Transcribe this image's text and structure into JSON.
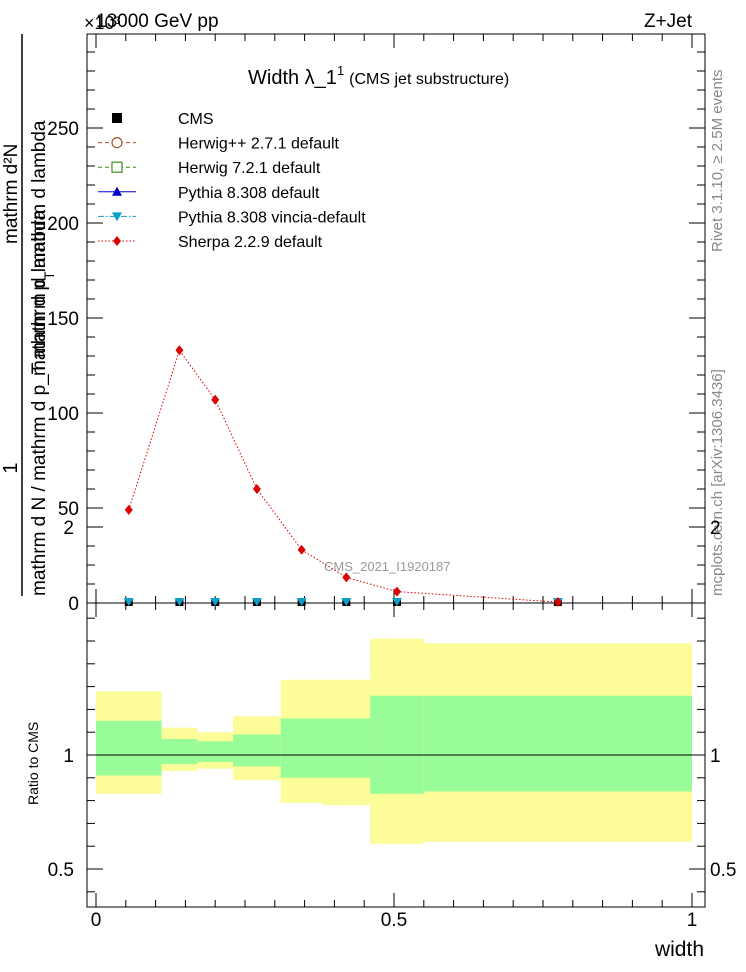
{
  "header": {
    "left": "13000 GeV pp",
    "right": "Z+Jet",
    "exponent_label": "×10³"
  },
  "side": {
    "rivet": "Rivet 3.1.10, ≥ 2.5M events",
    "mcplots": "mcplots.cern.ch [arXiv:1306.3436]"
  },
  "chart_data": [
    {
      "type": "line",
      "title": "Width λ_1",
      "title_superscript": "1",
      "subtitle": "(CMS jet substructure)",
      "analysis_label": "CMS_2021_I1920187",
      "ylabel": {
        "numerator": "1",
        "denominator": "mathrm d N / mathrm d p_T mathrm d lambda",
        "top": "mathrm d²N",
        "bottom_a": "mathrm d p",
        "bottom_sub": "T",
        "bottom_b": "mathrm d lambda"
      },
      "xlim": [
        0,
        1
      ],
      "ylim": [
        0,
        298
      ],
      "y_multiplier": 1000,
      "yticks": [
        0,
        50,
        100,
        150,
        200,
        250
      ],
      "legend_position": "top-left",
      "legend": [
        {
          "name": "CMS",
          "color": "#000000",
          "marker": "square",
          "line": "none"
        },
        {
          "name": "Herwig++ 2.7.1 default",
          "color": "#a0522d",
          "marker": "open-circle",
          "line": "dashed"
        },
        {
          "name": "Herwig 7.2.1 default",
          "color": "#3c8c1e",
          "marker": "open-square",
          "line": "dashed"
        },
        {
          "name": "Pythia 8.308 default",
          "color": "#0000cc",
          "marker": "triangle-up",
          "line": "solid"
        },
        {
          "name": "Pythia 8.308 vincia-default",
          "color": "#0aa0c8",
          "marker": "triangle-down",
          "line": "dashdot"
        },
        {
          "name": "Sherpa 2.2.9 default",
          "color": "#dd0000",
          "marker": "diamond",
          "line": "dotted"
        }
      ],
      "x": [
        0.055,
        0.14,
        0.2,
        0.27,
        0.345,
        0.42,
        0.505,
        0.775
      ],
      "series": [
        {
          "name": "Sherpa 2.2.9 default",
          "values": [
            49,
            133,
            107,
            60,
            28,
            13.5,
            6,
            0.5
          ]
        },
        {
          "name": "CMS",
          "values": [
            0,
            0,
            0,
            0,
            0,
            0,
            0,
            0
          ]
        },
        {
          "name": "Pythia 8.308 vincia-default",
          "values": [
            0,
            0,
            0,
            0,
            0,
            0,
            0,
            0
          ]
        }
      ]
    },
    {
      "type": "area",
      "ylabel": "Ratio to CMS",
      "xlabel": "width",
      "xlim": [
        0,
        1
      ],
      "ylim": [
        0.33,
        2.3
      ],
      "xticks": [
        0,
        0.5,
        1
      ],
      "yticks": [
        0.5,
        1,
        2
      ],
      "bins": [
        {
          "lo": 0.0,
          "hi": 0.11,
          "inner": [
            0.91,
            1.15
          ],
          "outer": [
            0.83,
            1.28
          ]
        },
        {
          "lo": 0.11,
          "hi": 0.17,
          "inner": [
            0.96,
            1.07
          ],
          "outer": [
            0.93,
            1.12
          ]
        },
        {
          "lo": 0.17,
          "hi": 0.23,
          "inner": [
            0.97,
            1.06
          ],
          "outer": [
            0.94,
            1.1
          ]
        },
        {
          "lo": 0.23,
          "hi": 0.31,
          "inner": [
            0.95,
            1.09
          ],
          "outer": [
            0.89,
            1.17
          ]
        },
        {
          "lo": 0.31,
          "hi": 0.38,
          "inner": [
            0.9,
            1.16
          ],
          "outer": [
            0.79,
            1.33
          ]
        },
        {
          "lo": 0.38,
          "hi": 0.46,
          "inner": [
            0.9,
            1.16
          ],
          "outer": [
            0.78,
            1.33
          ]
        },
        {
          "lo": 0.46,
          "hi": 0.55,
          "inner": [
            0.83,
            1.26
          ],
          "outer": [
            0.61,
            1.51
          ]
        },
        {
          "lo": 0.55,
          "hi": 1.0,
          "inner": [
            0.84,
            1.26
          ],
          "outer": [
            0.62,
            1.49
          ]
        }
      ],
      "colors": {
        "inner": "#98fc98",
        "outer": "#fcfc98",
        "reference": "#000000"
      }
    }
  ]
}
